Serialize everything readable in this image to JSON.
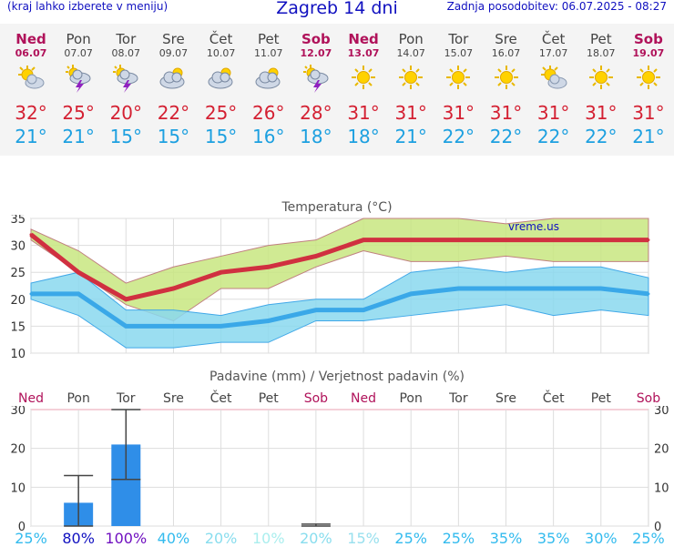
{
  "header": {
    "menu_hint": "(kraj lahko izberete v meniju)",
    "title": "Zagreb 14 dni",
    "updated": "Zadnja posodobitev: 06.07.2025 - 08:27"
  },
  "days": [
    {
      "name": "Ned",
      "date": "06.07",
      "weekend": true,
      "icon": "sun-cloud-icon",
      "tmax": "32°",
      "tmin": "21°",
      "precip_prob": "25%",
      "prob_color": "#33bbee"
    },
    {
      "name": "Pon",
      "date": "07.07",
      "weekend": false,
      "icon": "thunderstorm-icon",
      "tmax": "25°",
      "tmin": "21°",
      "precip_prob": "80%",
      "prob_color": "#1010c0"
    },
    {
      "name": "Tor",
      "date": "08.07",
      "weekend": false,
      "icon": "thunderstorm-icon",
      "tmax": "20°",
      "tmin": "15°",
      "precip_prob": "100%",
      "prob_color": "#7010c0"
    },
    {
      "name": "Sre",
      "date": "09.07",
      "weekend": false,
      "icon": "cloudy-icon",
      "tmax": "22°",
      "tmin": "15°",
      "precip_prob": "40%",
      "prob_color": "#33bbee"
    },
    {
      "name": "Čet",
      "date": "10.07",
      "weekend": false,
      "icon": "cloudy-icon",
      "tmax": "25°",
      "tmin": "15°",
      "precip_prob": "20%",
      "prob_color": "#88ddee"
    },
    {
      "name": "Pet",
      "date": "11.07",
      "weekend": false,
      "icon": "cloudy-icon",
      "tmax": "26°",
      "tmin": "16°",
      "precip_prob": "10%",
      "prob_color": "#aaeeee"
    },
    {
      "name": "Sob",
      "date": "12.07",
      "weekend": true,
      "icon": "thunderstorm-icon",
      "tmax": "28°",
      "tmin": "18°",
      "precip_prob": "20%",
      "prob_color": "#88ddee"
    },
    {
      "name": "Ned",
      "date": "13.07",
      "weekend": true,
      "icon": "sun-icon",
      "tmax": "31°",
      "tmin": "18°",
      "precip_prob": "15%",
      "prob_color": "#99e0ee"
    },
    {
      "name": "Pon",
      "date": "14.07",
      "weekend": false,
      "icon": "sun-icon",
      "tmax": "31°",
      "tmin": "21°",
      "precip_prob": "25%",
      "prob_color": "#33bbee"
    },
    {
      "name": "Tor",
      "date": "15.07",
      "weekend": false,
      "icon": "sun-icon",
      "tmax": "31°",
      "tmin": "22°",
      "precip_prob": "25%",
      "prob_color": "#33bbee"
    },
    {
      "name": "Sre",
      "date": "16.07",
      "weekend": false,
      "icon": "sun-icon",
      "tmax": "31°",
      "tmin": "22°",
      "precip_prob": "35%",
      "prob_color": "#33bbee"
    },
    {
      "name": "Čet",
      "date": "17.07",
      "weekend": false,
      "icon": "sun-cloud-icon",
      "tmax": "31°",
      "tmin": "22°",
      "precip_prob": "35%",
      "prob_color": "#33bbee"
    },
    {
      "name": "Pet",
      "date": "18.07",
      "weekend": false,
      "icon": "sun-icon",
      "tmax": "31°",
      "tmin": "22°",
      "precip_prob": "30%",
      "prob_color": "#33bbee"
    },
    {
      "name": "Sob",
      "date": "19.07",
      "weekend": true,
      "icon": "sun-icon",
      "tmax": "31°",
      "tmin": "21°",
      "precip_prob": "25%",
      "prob_color": "#33bbee"
    }
  ],
  "chart_data": [
    {
      "type": "line",
      "title": "Temperatura (°C)",
      "watermark": "vreme.us",
      "ylim": [
        10,
        35
      ],
      "yticks": [
        10,
        15,
        20,
        25,
        30,
        35
      ],
      "grid": true,
      "series": [
        {
          "values": [
            32,
            25,
            20,
            22,
            25,
            26,
            28,
            31,
            31,
            31,
            31,
            31,
            31,
            31
          ],
          "color": "#d03040"
        },
        {
          "values": [
            21,
            21,
            15,
            15,
            15,
            16,
            18,
            18,
            21,
            22,
            22,
            22,
            22,
            21
          ],
          "color": "#3aa8e8"
        }
      ],
      "bands": [
        {
          "upper": [
            33,
            29,
            23,
            26,
            28,
            30,
            31,
            35,
            35,
            35,
            34,
            35,
            35,
            35
          ],
          "lower": [
            31,
            25,
            19,
            16,
            22,
            22,
            26,
            29,
            27,
            27,
            28,
            27,
            27,
            27
          ],
          "color": "#c8e680"
        },
        {
          "upper": [
            23,
            25,
            18,
            18,
            17,
            19,
            20,
            20,
            25,
            26,
            25,
            26,
            26,
            24
          ],
          "lower": [
            20,
            17,
            11,
            11,
            12,
            12,
            16,
            16,
            17,
            18,
            19,
            17,
            18,
            17
          ],
          "color": "#8ad8ee"
        }
      ]
    },
    {
      "type": "bar",
      "title": "Padavine (mm) / Verjetnost padavin (%)",
      "ylim": [
        0,
        30
      ],
      "yticks": [
        0,
        10,
        20,
        30
      ],
      "values": [
        0,
        6,
        21,
        0,
        0,
        0,
        0,
        0,
        0,
        0,
        0,
        0,
        0,
        0
      ],
      "error_low": [
        0,
        0,
        12,
        0,
        0,
        0,
        0,
        0,
        0,
        0,
        0,
        0,
        0,
        0
      ],
      "error_high": [
        0,
        13,
        30,
        0,
        0,
        0,
        0.5,
        0,
        0,
        0,
        0,
        0,
        0,
        0
      ],
      "bar_color": "#2f8ee8"
    }
  ]
}
